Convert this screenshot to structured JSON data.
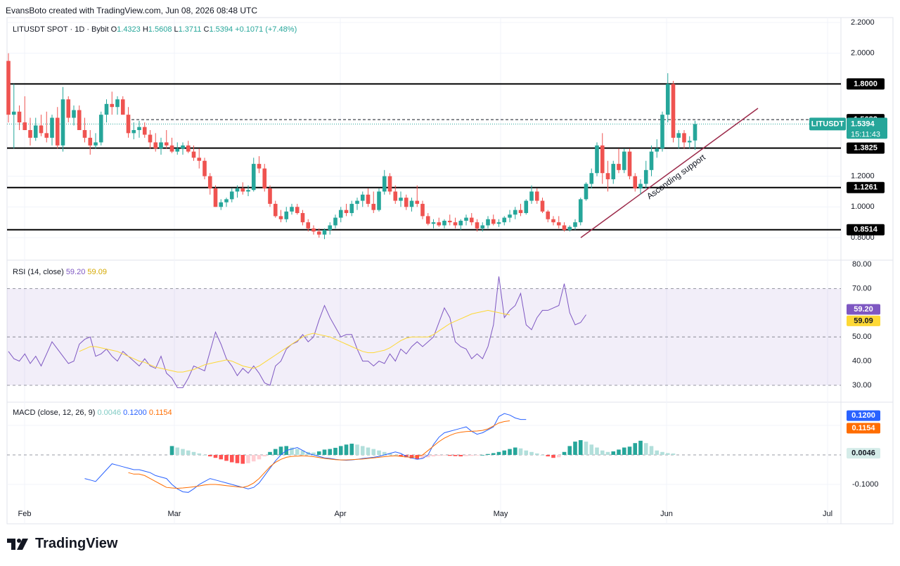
{
  "header": {
    "created_by": "EvansBoto created with TradingView.com, Jun 08, 2026 08:48 UTC"
  },
  "brand": {
    "logo_text": "17",
    "name": "TradingView"
  },
  "colors": {
    "up": "#26a69a",
    "down": "#ef5350",
    "rsi": "#7e57c2",
    "rsi_ma": "#fdd835",
    "macd": "#2962ff",
    "signal": "#ff6d00",
    "trendline": "#9c2a4a"
  },
  "symbol_legend": {
    "title": "LITUSDT SPOT · 1D · Bybit",
    "o_label": "O",
    "o": "1.4323",
    "h_label": "H",
    "h": "1.5608",
    "l_label": "L",
    "l": "1.3711",
    "c_label": "C",
    "c": "1.5394",
    "change": "+0.1071 (+7.48%)"
  },
  "price_axis": {
    "ticks": [
      "2.2000",
      "2.0000",
      "1.2000",
      "1.0000",
      "0.8000"
    ],
    "tick_values": [
      2.2,
      2.0,
      1.2,
      1.0,
      0.8
    ],
    "ylim": [
      0.75,
      2.25
    ]
  },
  "levels": [
    {
      "value": 1.8,
      "label": "1.8000"
    },
    {
      "value": 1.3825,
      "label": "1.3825"
    },
    {
      "value": 1.1261,
      "label": "1.1261"
    },
    {
      "value": 0.8514,
      "label": "0.8514"
    }
  ],
  "high_marker": {
    "value": 1.5682,
    "label": "1.5682"
  },
  "last_price": {
    "symbol": "LITUSDT",
    "price": "1.5394",
    "countdown": "15:11:43",
    "value": 1.5394
  },
  "annotation": {
    "text": "Ascending support"
  },
  "time_axis": [
    "Feb",
    "Mar",
    "Apr",
    "May",
    "Jun",
    "Jul"
  ],
  "rsi": {
    "legend_name": "RSI (14, close)",
    "value": "59.20",
    "ma_value": "59.09",
    "ticks": [
      "80.00",
      "70.00",
      "50.00",
      "40.00",
      "30.00"
    ],
    "tick_values": [
      80,
      70,
      50,
      40,
      30
    ],
    "bands": [
      70,
      50,
      30
    ],
    "ylim": [
      25,
      80
    ],
    "last": 59.2,
    "ma_last": 59.09
  },
  "macd": {
    "legend_name": "MACD (close, 12, 26, 9)",
    "hist": "0.0046",
    "macd": "0.1200",
    "signal": "0.1154",
    "ticks": [
      "-0.1000"
    ],
    "tick_values": [
      -0.1
    ],
    "ylim": [
      -0.17,
      0.17
    ],
    "hist_last": 0.0046,
    "macd_last": 0.12,
    "signal_last": 0.1154
  },
  "chart_data": {
    "type": "candlestick",
    "title": "LITUSDT SPOT · 1D · Bybit",
    "x_start": "2026-01-31",
    "candles": [
      [
        1.95,
        2.0,
        1.55,
        1.6
      ],
      [
        1.6,
        1.8,
        1.38,
        1.62
      ],
      [
        1.62,
        1.66,
        1.5,
        1.55
      ],
      [
        1.55,
        1.72,
        1.5,
        1.5
      ],
      [
        1.5,
        1.58,
        1.4,
        1.45
      ],
      [
        1.45,
        1.58,
        1.43,
        1.53
      ],
      [
        1.53,
        1.6,
        1.46,
        1.48
      ],
      [
        1.48,
        1.62,
        1.42,
        1.45
      ],
      [
        1.45,
        1.6,
        1.4,
        1.58
      ],
      [
        1.58,
        1.65,
        1.38,
        1.4
      ],
      [
        1.4,
        1.78,
        1.36,
        1.7
      ],
      [
        1.7,
        1.72,
        1.55,
        1.58
      ],
      [
        1.58,
        1.66,
        1.53,
        1.63
      ],
      [
        1.63,
        1.66,
        1.5,
        1.5
      ],
      [
        1.5,
        1.58,
        1.42,
        1.45
      ],
      [
        1.45,
        1.5,
        1.34,
        1.4
      ],
      [
        1.4,
        1.48,
        1.38,
        1.42
      ],
      [
        1.42,
        1.62,
        1.4,
        1.6
      ],
      [
        1.6,
        1.7,
        1.55,
        1.67
      ],
      [
        1.67,
        1.75,
        1.6,
        1.65
      ],
      [
        1.65,
        1.72,
        1.6,
        1.7
      ],
      [
        1.7,
        1.72,
        1.6,
        1.6
      ],
      [
        1.6,
        1.65,
        1.45,
        1.48
      ],
      [
        1.48,
        1.55,
        1.44,
        1.5
      ],
      [
        1.5,
        1.56,
        1.45,
        1.52
      ],
      [
        1.52,
        1.55,
        1.45,
        1.47
      ],
      [
        1.47,
        1.5,
        1.38,
        1.42
      ],
      [
        1.42,
        1.48,
        1.36,
        1.38
      ],
      [
        1.38,
        1.45,
        1.34,
        1.42
      ],
      [
        1.42,
        1.5,
        1.38,
        1.4
      ],
      [
        1.4,
        1.45,
        1.35,
        1.36
      ],
      [
        1.36,
        1.42,
        1.34,
        1.38
      ],
      [
        1.38,
        1.42,
        1.34,
        1.4
      ],
      [
        1.4,
        1.43,
        1.35,
        1.36
      ],
      [
        1.36,
        1.4,
        1.3,
        1.32
      ],
      [
        1.32,
        1.38,
        1.25,
        1.3
      ],
      [
        1.3,
        1.32,
        1.18,
        1.2
      ],
      [
        1.2,
        1.22,
        1.08,
        1.12
      ],
      [
        1.12,
        1.14,
        1.0,
        1.0
      ],
      [
        1.0,
        1.05,
        0.98,
        1.03
      ],
      [
        1.03,
        1.06,
        1.0,
        1.05
      ],
      [
        1.05,
        1.12,
        1.03,
        1.1
      ],
      [
        1.1,
        1.14,
        1.06,
        1.12
      ],
      [
        1.12,
        1.16,
        1.08,
        1.1
      ],
      [
        1.1,
        1.14,
        1.07,
        1.11
      ],
      [
        1.11,
        1.32,
        1.1,
        1.28
      ],
      [
        1.28,
        1.33,
        1.22,
        1.25
      ],
      [
        1.25,
        1.28,
        1.1,
        1.12
      ],
      [
        1.12,
        1.14,
        1.0,
        1.02
      ],
      [
        1.02,
        1.04,
        0.93,
        0.94
      ],
      [
        0.94,
        0.98,
        0.9,
        0.92
      ],
      [
        0.92,
        1.0,
        0.9,
        0.97
      ],
      [
        0.97,
        1.02,
        0.95,
        1.0
      ],
      [
        1.0,
        1.02,
        0.95,
        0.96
      ],
      [
        0.96,
        0.98,
        0.88,
        0.9
      ],
      [
        0.9,
        0.92,
        0.84,
        0.86
      ],
      [
        0.86,
        0.88,
        0.82,
        0.84
      ],
      [
        0.84,
        0.86,
        0.8,
        0.82
      ],
      [
        0.82,
        0.86,
        0.79,
        0.85
      ],
      [
        0.85,
        0.9,
        0.82,
        0.88
      ],
      [
        0.88,
        0.95,
        0.86,
        0.93
      ],
      [
        0.93,
        1.0,
        0.9,
        0.98
      ],
      [
        0.98,
        1.02,
        0.94,
        0.96
      ],
      [
        0.96,
        1.04,
        0.94,
        1.02
      ],
      [
        1.02,
        1.06,
        0.98,
        1.04
      ],
      [
        1.04,
        1.1,
        1.0,
        1.08
      ],
      [
        1.08,
        1.12,
        1.0,
        1.02
      ],
      [
        1.02,
        1.1,
        0.96,
        0.98
      ],
      [
        0.98,
        1.12,
        0.97,
        1.1
      ],
      [
        1.1,
        1.24,
        1.08,
        1.2
      ],
      [
        1.2,
        1.22,
        1.08,
        1.1
      ],
      [
        1.1,
        1.14,
        1.02,
        1.04
      ],
      [
        1.04,
        1.1,
        1.0,
        1.06
      ],
      [
        1.06,
        1.08,
        0.98,
        1.0
      ],
      [
        1.0,
        1.06,
        0.97,
        1.04
      ],
      [
        1.04,
        1.14,
        1.0,
        1.02
      ],
      [
        1.02,
        1.04,
        0.92,
        0.94
      ],
      [
        0.94,
        0.96,
        0.88,
        0.89
      ],
      [
        0.89,
        0.92,
        0.86,
        0.9
      ],
      [
        0.9,
        0.93,
        0.87,
        0.88
      ],
      [
        0.88,
        0.92,
        0.86,
        0.91
      ],
      [
        0.91,
        0.95,
        0.88,
        0.9
      ],
      [
        0.9,
        0.93,
        0.86,
        0.88
      ],
      [
        0.88,
        0.92,
        0.85,
        0.91
      ],
      [
        0.91,
        0.95,
        0.88,
        0.93
      ],
      [
        0.93,
        0.96,
        0.88,
        0.9
      ],
      [
        0.9,
        0.92,
        0.84,
        0.86
      ],
      [
        0.86,
        0.9,
        0.84,
        0.88
      ],
      [
        0.88,
        0.94,
        0.86,
        0.92
      ],
      [
        0.92,
        0.95,
        0.88,
        0.89
      ],
      [
        0.89,
        0.92,
        0.87,
        0.9
      ],
      [
        0.9,
        0.94,
        0.88,
        0.93
      ],
      [
        0.93,
        0.98,
        0.9,
        0.95
      ],
      [
        0.95,
        1.0,
        0.92,
        0.98
      ],
      [
        0.98,
        1.02,
        0.94,
        0.96
      ],
      [
        0.96,
        1.05,
        0.95,
        1.04
      ],
      [
        1.04,
        1.14,
        1.02,
        1.1
      ],
      [
        1.1,
        1.12,
        1.02,
        1.04
      ],
      [
        1.04,
        1.06,
        0.96,
        0.97
      ],
      [
        0.97,
        0.98,
        0.9,
        0.92
      ],
      [
        0.92,
        0.94,
        0.88,
        0.9
      ],
      [
        0.9,
        0.94,
        0.86,
        0.88
      ],
      [
        0.88,
        0.9,
        0.84,
        0.85
      ],
      [
        0.85,
        0.88,
        0.84,
        0.87
      ],
      [
        0.87,
        0.92,
        0.85,
        0.9
      ],
      [
        0.9,
        1.06,
        0.88,
        1.05
      ],
      [
        1.05,
        1.16,
        1.04,
        1.15
      ],
      [
        1.15,
        1.25,
        1.12,
        1.22
      ],
      [
        1.22,
        1.42,
        1.2,
        1.4
      ],
      [
        1.4,
        1.48,
        1.15,
        1.22
      ],
      [
        1.22,
        1.3,
        1.1,
        1.18
      ],
      [
        1.18,
        1.3,
        1.15,
        1.28
      ],
      [
        1.28,
        1.38,
        1.22,
        1.24
      ],
      [
        1.24,
        1.38,
        1.22,
        1.36
      ],
      [
        1.36,
        1.38,
        1.18,
        1.2
      ],
      [
        1.2,
        1.22,
        1.1,
        1.12
      ],
      [
        1.12,
        1.18,
        1.08,
        1.15
      ],
      [
        1.15,
        1.3,
        1.12,
        1.24
      ],
      [
        1.24,
        1.4,
        1.2,
        1.36
      ],
      [
        1.36,
        1.44,
        1.32,
        1.38
      ],
      [
        1.38,
        1.62,
        1.36,
        1.6
      ],
      [
        1.6,
        1.87,
        1.55,
        1.8
      ],
      [
        1.8,
        1.82,
        1.42,
        1.45
      ],
      [
        1.45,
        1.5,
        1.38,
        1.48
      ],
      [
        1.48,
        1.5,
        1.38,
        1.42
      ],
      [
        1.42,
        1.46,
        1.38,
        1.43
      ],
      [
        1.4323,
        1.5608,
        1.3711,
        1.5394
      ]
    ],
    "rsi": [
      44,
      41,
      40,
      43,
      39,
      42,
      38,
      43,
      48,
      45,
      42,
      39,
      40,
      47,
      49,
      50,
      42,
      43,
      45,
      42,
      40,
      44,
      42,
      40,
      38,
      41,
      38,
      37,
      42,
      35,
      33,
      29,
      29,
      33,
      38,
      37,
      36,
      44,
      52,
      47,
      41,
      38,
      34,
      37,
      35,
      38,
      35,
      31,
      30,
      38,
      40,
      45,
      47,
      48,
      51,
      48,
      50,
      57,
      63,
      58,
      54,
      50,
      51,
      51,
      45,
      40,
      40,
      38,
      40,
      39,
      43,
      40,
      45,
      43,
      46,
      48,
      46,
      48,
      50,
      56,
      62,
      58,
      48,
      46,
      45,
      41,
      43,
      41,
      46,
      55,
      75,
      58,
      61,
      63,
      68,
      55,
      53,
      58,
      61,
      61,
      62,
      63,
      72,
      60,
      55,
      56,
      59.2
    ],
    "rsi_ma": [
      null,
      null,
      null,
      null,
      null,
      null,
      null,
      null,
      null,
      null,
      null,
      null,
      null,
      44,
      45,
      46,
      46,
      45.5,
      45,
      44.5,
      44,
      43,
      42,
      41,
      40,
      39.5,
      38.5,
      37.5,
      37,
      36.5,
      36,
      35.5,
      35.5,
      36,
      36.5,
      37.5,
      38.5,
      39,
      39.5,
      40,
      40.5,
      40,
      39,
      38,
      37.5,
      37,
      38,
      39.5,
      41,
      42.5,
      44,
      45.5,
      47,
      48.5,
      50,
      51,
      51.5,
      51,
      50.5,
      50,
      49,
      48,
      47,
      46,
      45,
      44,
      43.5,
      43.5,
      44,
      44.5,
      45.5,
      47,
      48.5,
      49.5,
      50,
      50,
      50,
      50,
      51,
      52.5,
      54,
      55.5,
      56.5,
      57.5,
      58.5,
      59.5,
      60,
      60.5,
      61,
      60.5,
      60,
      59.5,
      59.09
    ],
    "macd": [
      null,
      null,
      null,
      null,
      null,
      null,
      null,
      null,
      null,
      null,
      null,
      null,
      null,
      null,
      -0.08,
      -0.085,
      -0.09,
      -0.07,
      -0.05,
      -0.03,
      -0.035,
      -0.04,
      -0.045,
      -0.05,
      -0.05,
      -0.055,
      -0.06,
      -0.07,
      -0.075,
      -0.08,
      -0.1,
      -0.115,
      -0.125,
      -0.127,
      -0.115,
      -0.1,
      -0.09,
      -0.08,
      -0.085,
      -0.09,
      -0.095,
      -0.1,
      -0.105,
      -0.11,
      -0.115,
      -0.11,
      -0.095,
      -0.07,
      -0.045,
      -0.02,
      0.0,
      0.015,
      0.02,
      0.025,
      0.015,
      0.005,
      0.0,
      -0.005,
      -0.01,
      -0.012,
      -0.015,
      -0.017,
      -0.018,
      -0.017,
      -0.015,
      -0.012,
      -0.01,
      -0.008,
      -0.005,
      0.0,
      0.005,
      0.01,
      0.005,
      -0.005,
      -0.01,
      -0.015,
      -0.012,
      0.0,
      0.035,
      0.06,
      0.075,
      0.08,
      0.085,
      0.09,
      0.095,
      0.08,
      0.07,
      0.075,
      0.085,
      0.095,
      0.13,
      0.14,
      0.135,
      0.125,
      0.12,
      0.12
    ],
    "signal": [
      null,
      null,
      null,
      null,
      null,
      null,
      null,
      null,
      null,
      null,
      null,
      null,
      null,
      null,
      null,
      null,
      null,
      null,
      null,
      null,
      null,
      null,
      -0.06,
      -0.065,
      -0.065,
      -0.07,
      -0.08,
      -0.09,
      -0.1,
      -0.11,
      -0.112,
      -0.113,
      -0.112,
      -0.11,
      -0.108,
      -0.105,
      -0.102,
      -0.1,
      -0.1,
      -0.102,
      -0.104,
      -0.106,
      -0.108,
      -0.11,
      -0.105,
      -0.095,
      -0.08,
      -0.06,
      -0.04,
      -0.025,
      -0.015,
      -0.008,
      -0.005,
      -0.004,
      -0.003,
      -0.004,
      -0.006,
      -0.009,
      -0.012,
      -0.014,
      -0.016,
      -0.017,
      -0.017,
      -0.016,
      -0.015,
      -0.014,
      -0.012,
      -0.01,
      -0.008,
      -0.006,
      -0.004,
      -0.003,
      -0.005,
      -0.007,
      -0.008,
      -0.006,
      0.0,
      0.015,
      0.03,
      0.045,
      0.057,
      0.066,
      0.073,
      0.077,
      0.079,
      0.08,
      0.081,
      0.083,
      0.088,
      0.098,
      0.108,
      0.113,
      0.1154
    ],
    "hist": [
      0.03,
      0.025,
      0.02,
      0.015,
      0.01,
      0.005,
      0.0,
      -0.005,
      -0.01,
      -0.015,
      -0.02,
      -0.025,
      -0.028,
      -0.03,
      -0.028,
      -0.022,
      -0.015,
      -0.005,
      0.01,
      0.02,
      0.028,
      0.03,
      0.025,
      0.02,
      0.015,
      0.01,
      0.008,
      0.012,
      0.018,
      0.02,
      0.024,
      0.03,
      0.035,
      0.038,
      0.035,
      0.03,
      0.025,
      0.02,
      0.015,
      0.01,
      0.005,
      0.0,
      -0.005,
      -0.008,
      -0.012,
      -0.015,
      -0.012,
      -0.008,
      -0.005,
      -0.003,
      -0.002,
      -0.003,
      -0.004,
      -0.005,
      -0.004,
      -0.003,
      -0.002,
      0.0,
      0.003,
      0.006,
      0.01,
      0.015,
      0.02,
      0.025,
      0.022,
      0.015,
      0.01,
      0.005,
      0.0,
      -0.005,
      -0.01,
      -0.008,
      0.01,
      0.03,
      0.045,
      0.05,
      0.045,
      0.035,
      0.025,
      0.015,
      0.01,
      0.012,
      0.018,
      0.025,
      0.028,
      0.04,
      0.048,
      0.04,
      0.03,
      0.015,
      0.01,
      0.006,
      0.0046
    ],
    "hist_start": 30
  }
}
